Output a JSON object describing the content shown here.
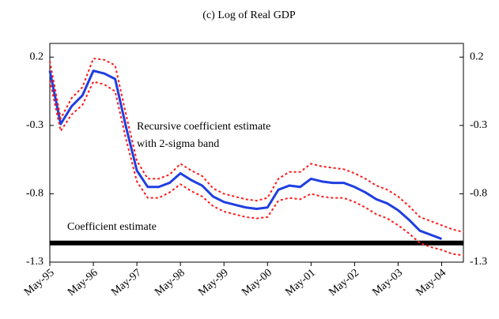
{
  "chart_data": {
    "type": "line",
    "title": "(c) Log of Real GDP",
    "annotations": [
      "Recursive coefficient estimate",
      "with 2-sigma band"
    ],
    "reference_line": {
      "label": "Coefficient estimate",
      "value": -1.16,
      "color": "#000000"
    },
    "x": [
      "1995-05",
      "1995-08",
      "1995-11",
      "1996-02",
      "1996-05",
      "1996-08",
      "1996-11",
      "1997-02",
      "1997-05",
      "1997-08",
      "1997-11",
      "1998-02",
      "1998-05",
      "1998-08",
      "1998-11",
      "1999-02",
      "1999-05",
      "1999-08",
      "1999-11",
      "2000-02",
      "2000-05",
      "2000-08",
      "2000-11",
      "2001-02",
      "2001-05",
      "2001-08",
      "2001-11",
      "2002-02",
      "2002-05",
      "2002-08",
      "2002-11",
      "2003-02",
      "2003-05",
      "2003-08",
      "2003-11",
      "2004-02",
      "2004-05",
      "2004-08",
      "2004-11"
    ],
    "series": [
      {
        "color": "#1f3fe0",
        "style": "solid",
        "values": [
          0.1,
          -0.29,
          -0.16,
          -0.08,
          0.1,
          0.08,
          0.04,
          -0.31,
          -0.63,
          -0.75,
          -0.75,
          -0.72,
          -0.65,
          -0.7,
          -0.74,
          -0.82,
          -0.86,
          -0.88,
          -0.9,
          -0.91,
          -0.9,
          -0.77,
          -0.74,
          -0.75,
          -0.69,
          -0.71,
          -0.72,
          -0.72,
          -0.75,
          -0.79,
          -0.84,
          -0.87,
          -0.92,
          -0.99,
          -1.07,
          -1.1,
          -1.13,
          null,
          null
        ]
      },
      {
        "color": "#ff1a1a",
        "style": "dotted",
        "values": [
          0.17,
          -0.25,
          -0.1,
          -0.02,
          0.19,
          0.18,
          0.14,
          -0.22,
          -0.56,
          -0.69,
          -0.69,
          -0.66,
          -0.58,
          -0.63,
          -0.67,
          -0.76,
          -0.8,
          -0.82,
          -0.84,
          -0.85,
          -0.83,
          -0.69,
          -0.64,
          -0.64,
          -0.58,
          -0.6,
          -0.61,
          -0.62,
          -0.65,
          -0.69,
          -0.74,
          -0.77,
          -0.82,
          -0.89,
          -0.97,
          -1.0,
          -1.03,
          -1.06,
          -1.08
        ]
      },
      {
        "color": "#ff1a1a",
        "style": "dotted",
        "values": [
          0.03,
          -0.34,
          -0.22,
          -0.15,
          0.02,
          0.0,
          -0.05,
          -0.4,
          -0.71,
          -0.83,
          -0.83,
          -0.79,
          -0.73,
          -0.78,
          -0.82,
          -0.89,
          -0.93,
          -0.95,
          -0.97,
          -0.98,
          -0.97,
          -0.85,
          -0.83,
          -0.84,
          -0.8,
          -0.82,
          -0.83,
          -0.83,
          -0.86,
          -0.9,
          -0.95,
          -0.98,
          -1.03,
          -1.09,
          -1.16,
          -1.19,
          -1.21,
          -1.24,
          -1.25
        ]
      }
    ],
    "xlim": [
      "1995-05",
      "2004-11"
    ],
    "xticks": [
      {
        "value": "1995-05",
        "label": "May-95"
      },
      {
        "value": "1996-05",
        "label": "May-96"
      },
      {
        "value": "1997-05",
        "label": "May-97"
      },
      {
        "value": "1998-05",
        "label": "May-98"
      },
      {
        "value": "1999-05",
        "label": "May-99"
      },
      {
        "value": "2000-05",
        "label": "May-00"
      },
      {
        "value": "2001-05",
        "label": "May-01"
      },
      {
        "value": "2002-05",
        "label": "May-02"
      },
      {
        "value": "2003-05",
        "label": "May-03"
      },
      {
        "value": "2004-05",
        "label": "May-04"
      }
    ],
    "ylim": [
      -1.3,
      0.3
    ],
    "yticks": [
      0.2,
      -0.3,
      -0.8,
      -1.3
    ],
    "y2lim": [
      -1.3,
      0.3
    ],
    "y2ticks": [
      0.2,
      -0.3,
      -0.8,
      -1.3
    ]
  }
}
